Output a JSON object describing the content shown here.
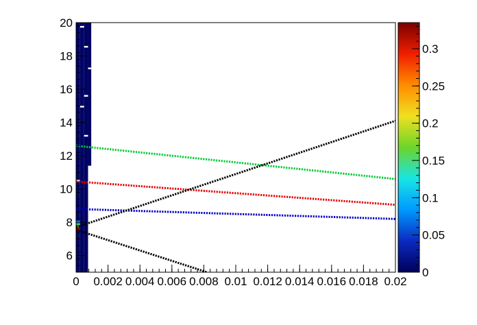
{
  "chart_data": {
    "type": "heatmap",
    "title": "",
    "xlabel": "",
    "ylabel": "",
    "xlim": [
      0,
      0.02
    ],
    "ylim": [
      5,
      20
    ],
    "x_ticks": [
      {
        "v": 0,
        "label": "0"
      },
      {
        "v": 0.002,
        "label": "0.002"
      },
      {
        "v": 0.004,
        "label": "0.004"
      },
      {
        "v": 0.006,
        "label": "0.006"
      },
      {
        "v": 0.008,
        "label": "0.008"
      },
      {
        "v": 0.01,
        "label": "0.01"
      },
      {
        "v": 0.012,
        "label": "0.012"
      },
      {
        "v": 0.014,
        "label": "0.014"
      },
      {
        "v": 0.016,
        "label": "0.016"
      },
      {
        "v": 0.018,
        "label": "0.018"
      },
      {
        "v": 0.02,
        "label": "0.02"
      }
    ],
    "y_ticks": [
      {
        "v": 6,
        "label": "6"
      },
      {
        "v": 8,
        "label": "8"
      },
      {
        "v": 10,
        "label": "10"
      },
      {
        "v": 12,
        "label": "12"
      },
      {
        "v": 14,
        "label": "14"
      },
      {
        "v": 16,
        "label": "16"
      },
      {
        "v": 18,
        "label": "18"
      },
      {
        "v": 20,
        "label": "20"
      }
    ],
    "colorbar": {
      "range": [
        0,
        0.335
      ],
      "ticks": [
        {
          "v": 0,
          "label": "0"
        },
        {
          "v": 0.05,
          "label": "0.05"
        },
        {
          "v": 0.1,
          "label": "0.1"
        },
        {
          "v": 0.15,
          "label": "0.15"
        },
        {
          "v": 0.2,
          "label": "0.2"
        },
        {
          "v": 0.25,
          "label": "0.25"
        },
        {
          "v": 0.3,
          "label": "0.3"
        }
      ],
      "palette": [
        "#00005a",
        "#0a2bbf",
        "#0099ff",
        "#19e5e5",
        "#6cd42a",
        "#f0e020",
        "#ff8c00",
        "#f01e00",
        "#7a0000"
      ]
    },
    "heatmap_cells": {
      "x_range": [
        0,
        0.00095
      ],
      "description_note": "",
      "columns": [
        {
          "x0": 0,
          "x1": 0.00025,
          "y0": 5,
          "y1": 20,
          "value": 0.005
        },
        {
          "x0": 0.00025,
          "x1": 0.0005,
          "y0": 5,
          "y1": 20,
          "value": 0.004
        },
        {
          "x0": 0.0005,
          "x1": 0.00075,
          "y0": 5,
          "y1": 20,
          "value": 0.003
        },
        {
          "x0": 0.00075,
          "x1": 0.00095,
          "y0": 11.4,
          "y1": 20,
          "value": 0.003
        }
      ],
      "hot_cells": [
        {
          "x0": 0,
          "x1": 0.00025,
          "y0": 7.7,
          "y1": 7.9,
          "value": 0.16
        },
        {
          "x0": 0,
          "x1": 0.00025,
          "y0": 7.5,
          "y1": 7.7,
          "value": 0.33
        },
        {
          "x0": 0,
          "x1": 0.00025,
          "y0": 7.9,
          "y1": 8.1,
          "value": 0.08
        }
      ],
      "white_gaps": [
        {
          "x0": 0.00025,
          "x1": 0.0005,
          "y0": 19.7,
          "y1": 19.8
        },
        {
          "x0": 0.0005,
          "x1": 0.00075,
          "y0": 18.5,
          "y1": 18.6
        },
        {
          "x0": 0.0005,
          "x1": 0.00075,
          "y0": 15.55,
          "y1": 15.65
        },
        {
          "x0": 0.00025,
          "x1": 0.0005,
          "y0": 14.9,
          "y1": 15.0
        },
        {
          "x0": 0.00075,
          "x1": 0.00095,
          "y0": 17.2,
          "y1": 17.3
        },
        {
          "x0": 0.0005,
          "x1": 0.00075,
          "y0": 13.15,
          "y1": 13.25
        },
        {
          "x0": 0,
          "x1": 0.00025,
          "y0": 10.45,
          "y1": 10.55
        }
      ]
    },
    "series": [
      {
        "color": "#00cc33",
        "points": [
          [
            0,
            12.6
          ],
          [
            0.02,
            10.6
          ]
        ]
      },
      {
        "color": "#e60000",
        "points": [
          [
            0,
            10.45
          ],
          [
            0.02,
            9.05
          ]
        ]
      },
      {
        "color": "#0000cc",
        "points": [
          [
            0,
            8.8
          ],
          [
            0.02,
            8.2
          ]
        ]
      },
      {
        "color": "#000000",
        "points": [
          [
            0,
            7.7
          ],
          [
            0.02,
            14.1
          ]
        ]
      },
      {
        "color": "#000000",
        "points": [
          [
            0,
            7.55
          ],
          [
            0.0082,
            5.0
          ]
        ]
      }
    ],
    "grid": false,
    "legend": "none"
  }
}
